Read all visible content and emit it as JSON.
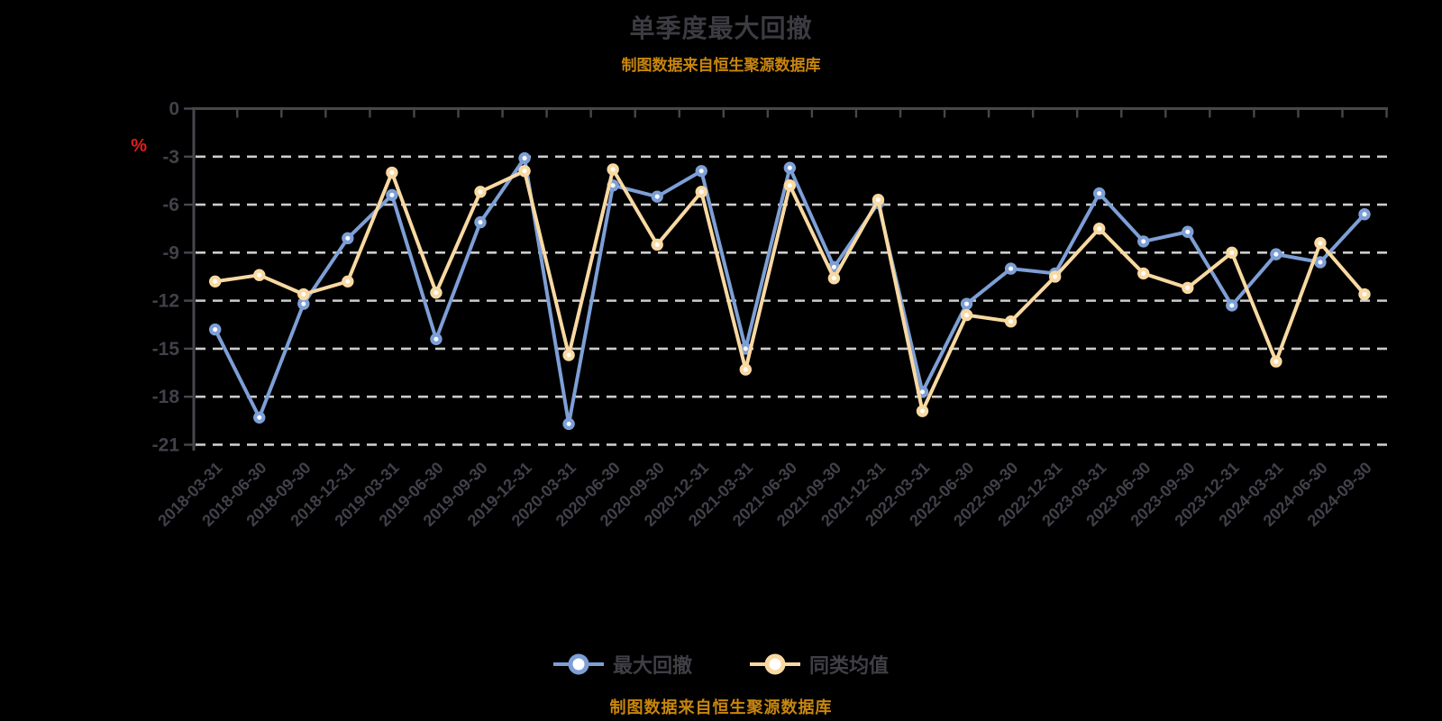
{
  "header": {
    "title": "单季度最大回撤",
    "subtitle": "制图数据来自恒生聚源数据库"
  },
  "footer": {
    "source_note": "制图数据来自恒生聚源数据库"
  },
  "y_axis": {
    "unit_label": "%",
    "tick_labels": [
      "0",
      "-3",
      "-6",
      "-9",
      "-12",
      "-15",
      "-18",
      "-21"
    ]
  },
  "legend": {
    "items": [
      {
        "label": "最大回撤",
        "color": "#7d9fd6"
      },
      {
        "label": "同类均值",
        "color": "#f9d9a2"
      }
    ]
  },
  "colors": {
    "background": "#000000",
    "grid": "#cccccc",
    "axis": "#47474b",
    "text": "#41414a",
    "unit_label": "#e01f1f",
    "source_note": "#c8860e",
    "marker_fill": "#ffffff"
  },
  "chart_data": {
    "type": "line",
    "title": "单季度最大回撤",
    "xlabel": "",
    "ylabel": "%",
    "ylim": [
      -21,
      0
    ],
    "y_ticks": [
      0,
      -3,
      -6,
      -9,
      -12,
      -15,
      -18,
      -21
    ],
    "grid": "horizontal-dashed",
    "legend_position": "bottom",
    "categories": [
      "2018-03-31",
      "2018-06-30",
      "2018-09-30",
      "2018-12-31",
      "2019-03-31",
      "2019-06-30",
      "2019-09-30",
      "2019-12-31",
      "2020-03-31",
      "2020-06-30",
      "2020-09-30",
      "2020-12-31",
      "2021-03-31",
      "2021-06-30",
      "2021-09-30",
      "2021-12-31",
      "2022-03-31",
      "2022-06-30",
      "2022-09-30",
      "2022-12-31",
      "2023-03-31",
      "2023-06-30",
      "2023-09-30",
      "2023-12-31",
      "2024-03-31",
      "2024-06-30",
      "2024-09-30"
    ],
    "series": [
      {
        "name": "最大回撤",
        "color": "#7d9fd6",
        "values": [
          -13.8,
          -19.3,
          -12.2,
          -8.1,
          -5.4,
          -14.4,
          -7.1,
          -3.1,
          -19.7,
          -4.8,
          -5.5,
          -3.9,
          -15.0,
          -3.7,
          -9.9,
          -5.9,
          -17.7,
          -12.2,
          -10.0,
          -10.3,
          -5.3,
          -8.3,
          -7.7,
          -12.3,
          -9.1,
          -9.6,
          -6.6
        ]
      },
      {
        "name": "同类均值",
        "color": "#f9d9a2",
        "values": [
          -10.8,
          -10.4,
          -11.6,
          -10.8,
          -4.0,
          -11.5,
          -5.2,
          -3.9,
          -15.4,
          -3.8,
          -8.5,
          -5.2,
          -16.3,
          -4.8,
          -10.6,
          -5.7,
          -18.9,
          -12.9,
          -13.3,
          -10.5,
          -7.5,
          -10.3,
          -11.2,
          -9.0,
          -15.8,
          -8.4,
          -11.6
        ]
      }
    ]
  }
}
